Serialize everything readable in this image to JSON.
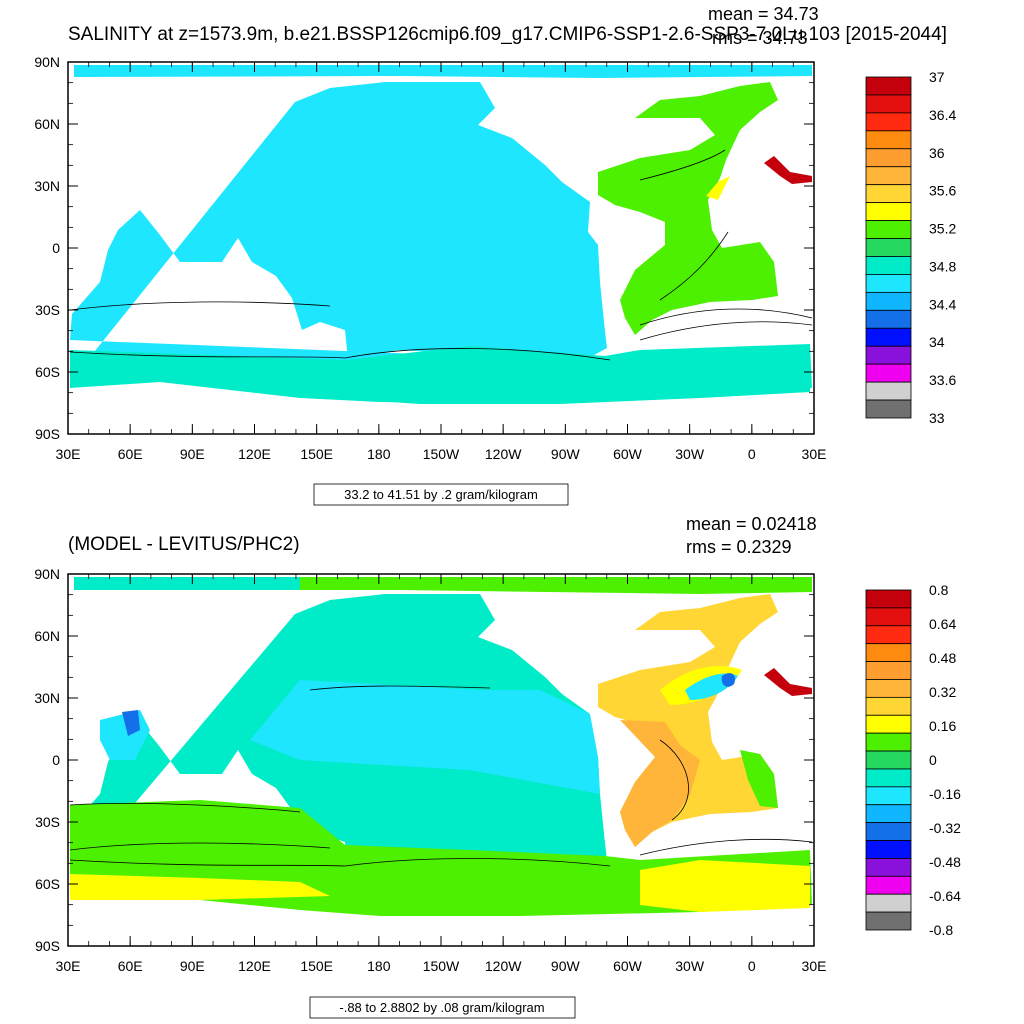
{
  "panels": [
    {
      "title": "SALINITY at z=1573.9m, b.e21.BSSP126cmip6.f09_g17.CMIP6-SSP1-2.6-SSP3-7.0Lu.103 [2015-2044]",
      "mean_text": "mean = 34.73",
      "rms_text": "rms = 34.73",
      "contour_info": "33.2 to 41.51 by .2 gram/kilogram",
      "lat_labels": [
        "90N",
        "60N",
        "30N",
        "0",
        "30S",
        "60S",
        "90S"
      ],
      "lon_labels": [
        "30E",
        "60E",
        "90E",
        "120E",
        "150E",
        "180",
        "150W",
        "120W",
        "90W",
        "60W",
        "30W",
        "0",
        "30E"
      ],
      "colorbar_labels": [
        "37",
        "36.4",
        "36",
        "35.6",
        "35.2",
        "34.8",
        "34.4",
        "34",
        "33.6",
        "33"
      ],
      "colorbar_colors": [
        "#c4000c",
        "#e41010",
        "#ff2a10",
        "#ff8a10",
        "#ff9e30",
        "#ffb43a",
        "#ffd634",
        "#ffff00",
        "#4cf000",
        "#24d860",
        "#00ecc8",
        "#1ee6ff",
        "#10b6ff",
        "#1470e8",
        "#0010ff",
        "#8a10dc",
        "#f000f0",
        "#d0d0d0",
        "#707070"
      ]
    },
    {
      "title": "(MODEL - LEVITUS/PHC2)",
      "mean_text": "mean = 0.02418",
      "rms_text": "rms = 0.2329",
      "contour_info": "-.88 to 2.8802 by .08 gram/kilogram",
      "lat_labels": [
        "90N",
        "60N",
        "30N",
        "0",
        "30S",
        "60S",
        "90S"
      ],
      "lon_labels": [
        "30E",
        "60E",
        "90E",
        "120E",
        "150E",
        "180",
        "150W",
        "120W",
        "90W",
        "60W",
        "30W",
        "0",
        "30E"
      ],
      "colorbar_labels": [
        "0.8",
        "0.64",
        "0.48",
        "0.32",
        "0.16",
        "0",
        "-0.16",
        "-0.32",
        "-0.48",
        "-0.64",
        "-0.8"
      ],
      "colorbar_colors": [
        "#c4000c",
        "#e41010",
        "#ff2a10",
        "#ff8a10",
        "#ff9e30",
        "#ffb43a",
        "#ffd634",
        "#ffff00",
        "#4cf000",
        "#24d860",
        "#00ecc8",
        "#1ee6ff",
        "#10b6ff",
        "#1470e8",
        "#0010ff",
        "#8a10dc",
        "#f000f0",
        "#d0d0d0",
        "#707070"
      ]
    }
  ],
  "map_colors": {
    "pacific_fill": "#1ee6ff",
    "southern_band": "#00ecc8",
    "atlantic_fill": "#4cf000",
    "atlantic_warm": "#ffff00",
    "med_outflow": "#c4000c",
    "anom_pacific": "#00ecc8",
    "anom_deep": "#1ee6ff",
    "anom_south": "#4cf000",
    "anom_atlantic": "#ffd634",
    "anom_orange": "#ffb43a",
    "anom_south_yellow": "#ffff00",
    "anom_blue": "#1470e8"
  }
}
